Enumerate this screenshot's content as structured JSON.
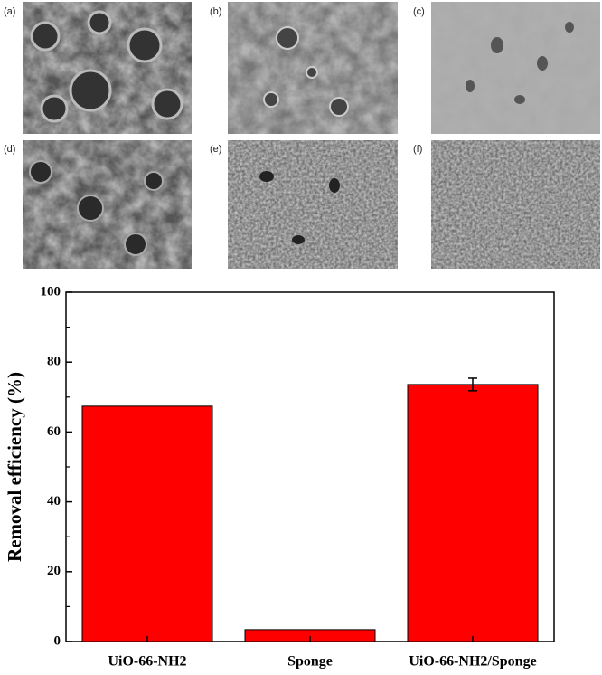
{
  "panels": [
    "(a)",
    "(b)",
    "(c)",
    "(d)",
    "(e)",
    "(f)"
  ],
  "chart_data": {
    "type": "bar",
    "ylabel": "Removal efficiency (%)",
    "categories": [
      "UiO-66-NH2",
      "Sponge",
      "UiO-66-NH2/Sponge"
    ],
    "values": [
      67.4,
      3.4,
      73.6
    ],
    "errors": [
      null,
      null,
      1.8
    ],
    "color": "#ff0000",
    "ylim": [
      0,
      100
    ],
    "yticks": [
      0,
      20,
      40,
      60,
      80,
      100
    ],
    "minor_yticks": [
      10,
      30,
      50,
      70,
      90
    ]
  }
}
